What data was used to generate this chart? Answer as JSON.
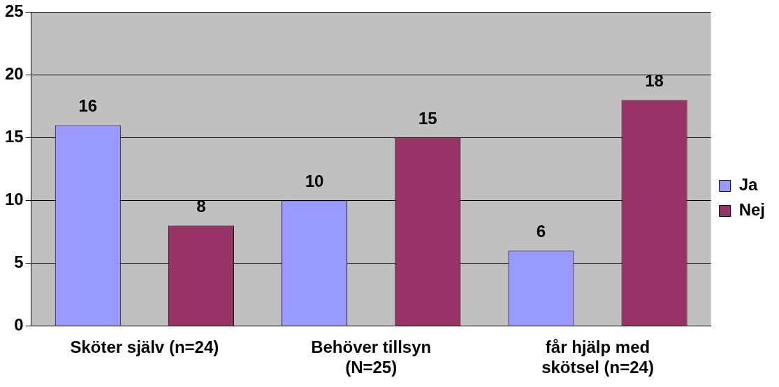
{
  "chart_data": {
    "type": "bar",
    "categories": [
      "Sköter själv (n=24)",
      "Behöver tillsyn (N=25)",
      "får hjälp med skötsel (n=24)"
    ],
    "series": [
      {
        "name": "Ja",
        "color": "#9999ff",
        "values": [
          16,
          10,
          6
        ]
      },
      {
        "name": "Nej",
        "color": "#993366",
        "values": [
          8,
          15,
          18
        ]
      }
    ],
    "ylim": [
      0,
      25
    ],
    "yticks": [
      0,
      5,
      10,
      15,
      20,
      25
    ],
    "grid": "y",
    "legend": "right",
    "data_labels": true
  }
}
